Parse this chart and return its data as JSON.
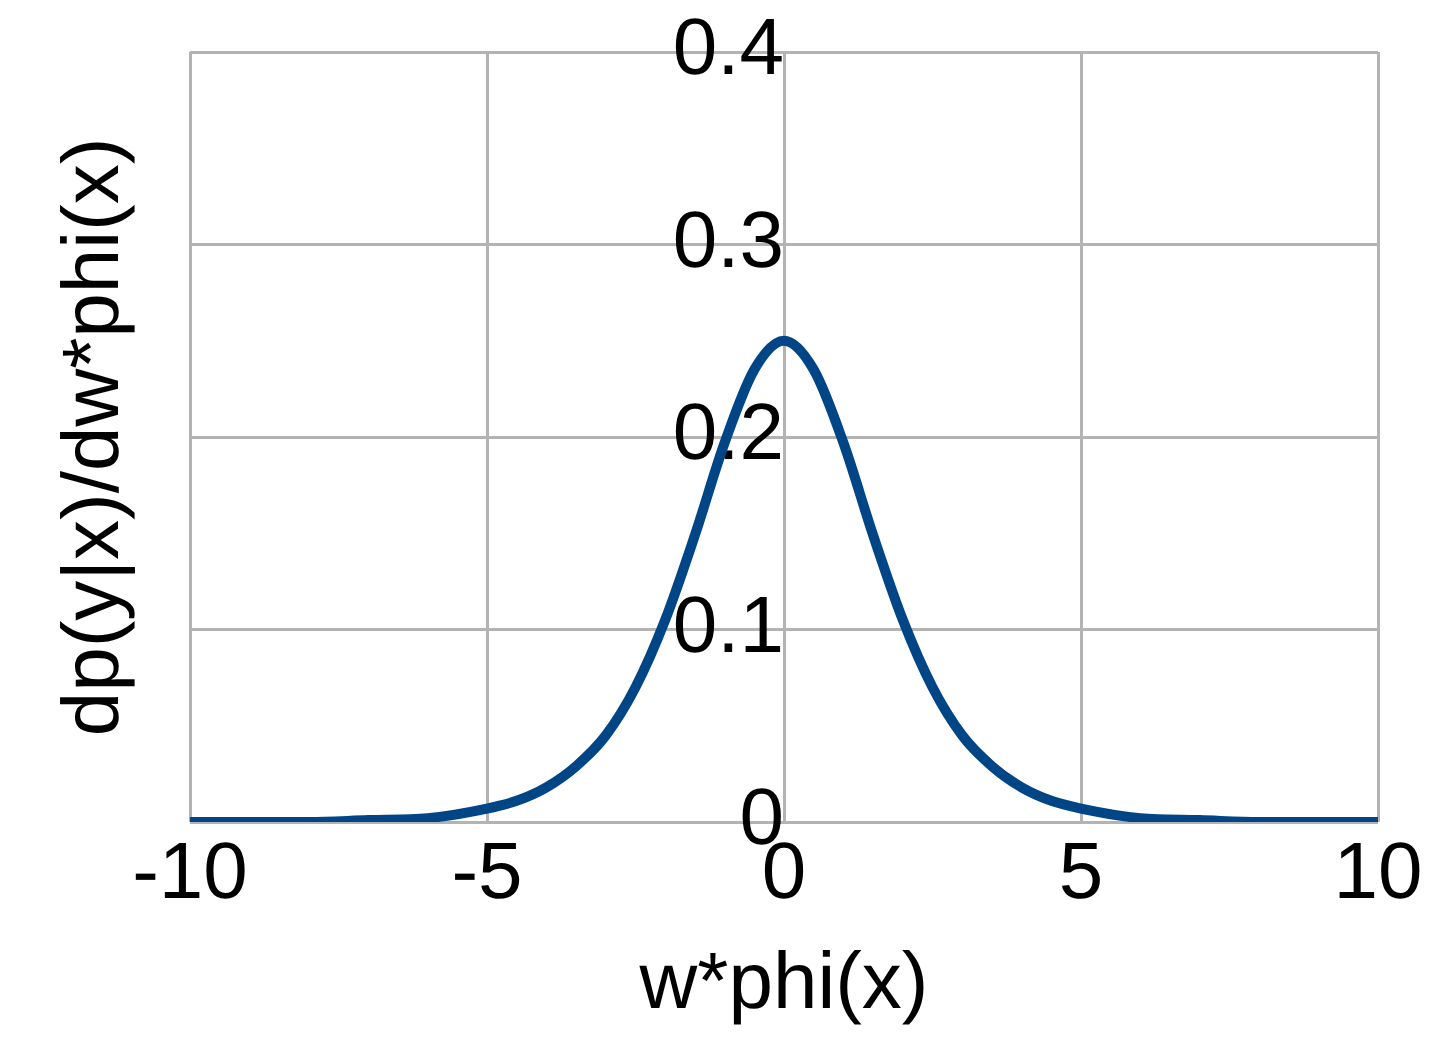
{
  "chart_data": {
    "type": "line",
    "xlabel": "w*phi(x)",
    "ylabel": "dp(y|x)/dw*phi(x)",
    "x": [
      -10,
      -9,
      -8,
      -7,
      -6,
      -5,
      -4.5,
      -4,
      -3.5,
      -3,
      -2.5,
      -2,
      -1.5,
      -1,
      -0.5,
      0,
      0.5,
      1,
      1.5,
      2,
      2.5,
      3,
      3.5,
      4,
      4.5,
      5,
      6,
      7,
      8,
      9,
      10
    ],
    "series": [
      {
        "color": "#004586",
        "values": [
          0,
          0,
          0,
          0.001,
          0.002,
          0.007,
          0.011,
          0.018,
          0.029,
          0.045,
          0.07,
          0.105,
          0.149,
          0.197,
          0.235,
          0.25,
          0.235,
          0.197,
          0.149,
          0.105,
          0.07,
          0.045,
          0.029,
          0.018,
          0.011,
          0.007,
          0.002,
          0.001,
          0,
          0,
          0
        ]
      }
    ],
    "xlim": [
      -10,
      10
    ],
    "xticks": [
      -10,
      -5,
      0,
      5,
      10
    ],
    "ylim": [
      0,
      0.4
    ],
    "yticks": [
      0,
      0.1,
      0.2,
      0.3,
      0.4
    ],
    "grid": true,
    "legend": false,
    "marker": "none",
    "line_style": "solid"
  }
}
